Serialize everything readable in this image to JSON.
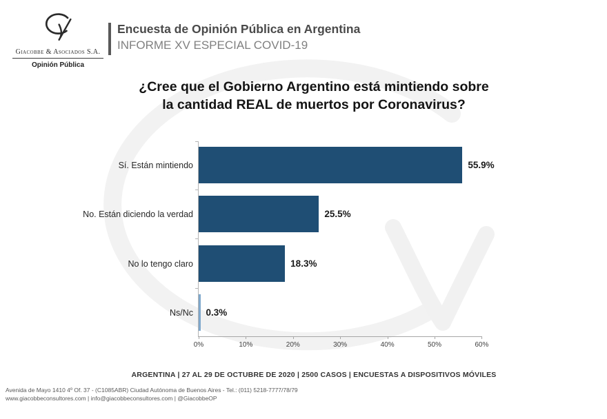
{
  "brand": {
    "company": "Giacobbe & Asociados S.A.",
    "division": "Opinión Pública"
  },
  "header": {
    "title": "Encuesta de Opinión Pública en Argentina",
    "subtitle": "INFORME XV ESPECIAL COVID-19"
  },
  "title": {
    "line1": "¿Cree que el Gobierno Argentino está mintiendo sobre",
    "line2": "la cantidad REAL de muertos por Coronavirus?"
  },
  "chart_data": {
    "type": "bar",
    "orientation": "horizontal",
    "title": "¿Cree que el Gobierno Argentino está mintiendo sobre la cantidad REAL de muertos por Coronavirus?",
    "categories": [
      "Sí. Están mintiendo",
      "No. Están diciendo la verdad",
      "No lo tengo claro",
      "Ns/Nc"
    ],
    "values": [
      55.9,
      25.5,
      18.3,
      0.3
    ],
    "value_labels": [
      "55.9%",
      "25.5%",
      "18.3%",
      "0.3%"
    ],
    "xlim": [
      0,
      60
    ],
    "x_ticks": [
      "0%",
      "10%",
      "20%",
      "30%",
      "40%",
      "50%",
      "60%"
    ],
    "xlabel": "",
    "ylabel": "",
    "grid": false,
    "legend": "none",
    "bar_color": "#1F4E74",
    "thin_bar_color": "#7FA8CC"
  },
  "caption": "ARGENTINA | 27 AL 29 DE OCTUBRE DE 2020 | 2500 CASOS | ENCUESTAS A DISPOSITIVOS MÓVILES",
  "footer": {
    "line1": "Avenida de Mayo 1410 4º Of. 37 - (C1085ABR) Ciudad Autónoma de Buenos Aires - Tel.: (011) 5218-7777/78/79",
    "line2": "www.giacobbeconsultores.com | info@giacobbeconsultores.com | @GiacobbeOP"
  }
}
